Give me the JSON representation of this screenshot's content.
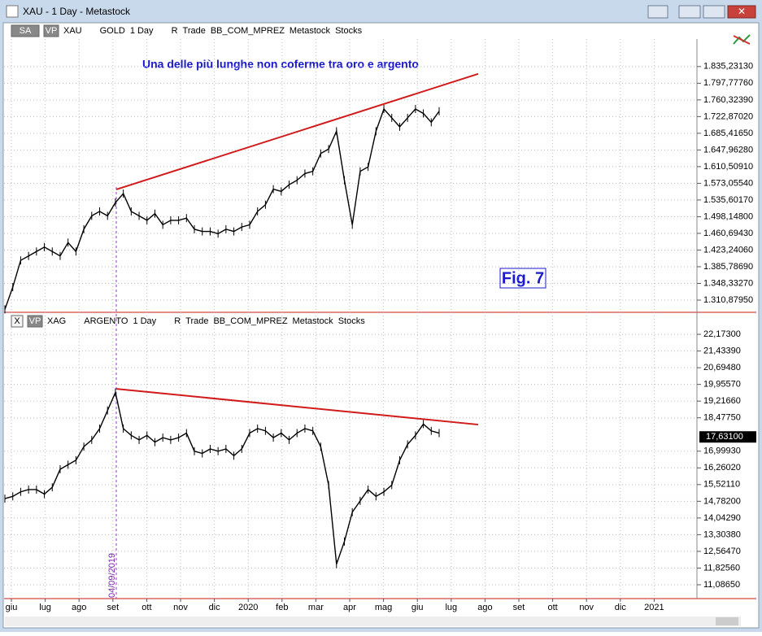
{
  "window": {
    "title": "XAU - 1 Day - Metastock"
  },
  "annotation": "Una delle più lunghe non coferme tra oro e argento",
  "figure_label": "Fig. 7",
  "marker_date": "04/09/2019",
  "x_axis": {
    "labels": [
      "giu",
      "lug",
      "ago",
      "set",
      "ott",
      "nov",
      "dic",
      "2020",
      "feb",
      "mar",
      "apr",
      "mag",
      "giu",
      "lug",
      "ago",
      "set",
      "ott",
      "nov",
      "dic",
      "2021"
    ]
  },
  "panels": [
    {
      "toolbar": {
        "style": "SA",
        "vp": "VP",
        "symbol": "XAU",
        "name": "GOLD",
        "period": "1 Day",
        "r": "R",
        "template": "Trade",
        "indicator": "BB_COM_MPREZ",
        "source": "Metastock",
        "kind": "Stocks"
      },
      "ylim": [
        1285.3,
        1897
      ],
      "yticks": [
        {
          "value": 1310.8795,
          "label": "1.310,87950"
        },
        {
          "value": 1348.3327,
          "label": "1.348,33270"
        },
        {
          "value": 1385.7869,
          "label": "1.385,78690"
        },
        {
          "value": 1423.2406,
          "label": "1.423,24060"
        },
        {
          "value": 1460.6943,
          "label": "1.460,69430"
        },
        {
          "value": 1498.148,
          "label": "1.498,14800"
        },
        {
          "value": 1535.6017,
          "label": "1.535,60170"
        },
        {
          "value": 1573.0554,
          "label": "1.573,05540"
        },
        {
          "value": 1610.5091,
          "label": "1.610,50910"
        },
        {
          "value": 1647.9628,
          "label": "1.647,96280"
        },
        {
          "value": 1685.4165,
          "label": "1.685,41650"
        },
        {
          "value": 1722.8702,
          "label": "1.722,87020"
        },
        {
          "value": 1760.3239,
          "label": "1.760,32390"
        },
        {
          "value": 1797.7776,
          "label": "1.797,77760"
        },
        {
          "value": 1835.2313,
          "label": "1.835,23130"
        }
      ],
      "closes": [
        1290,
        1340,
        1400,
        1410,
        1420,
        1430,
        1420,
        1410,
        1440,
        1420,
        1470,
        1500,
        1510,
        1500,
        1530,
        1550,
        1510,
        1500,
        1490,
        1505,
        1480,
        1490,
        1490,
        1495,
        1470,
        1465,
        1465,
        1460,
        1470,
        1465,
        1475,
        1480,
        1510,
        1525,
        1560,
        1555,
        1570,
        1580,
        1595,
        1600,
        1640,
        1650,
        1690,
        1580,
        1480,
        1600,
        1610,
        1690,
        1740,
        1720,
        1700,
        1720,
        1740,
        1730,
        1710,
        1735
      ],
      "trendline": [
        1559.3,
        1818.8
      ],
      "color": "#000000",
      "trend_color": "#d11a1a"
    },
    {
      "toolbar": {
        "style": "X",
        "vp": "VP",
        "symbol": "XAG",
        "name": "ARGENTO",
        "period": "1 Day",
        "r": "R",
        "template": "Trade",
        "indicator": "BB_COM_MPREZ",
        "source": "Metastock",
        "kind": "Stocks"
      },
      "ylim": [
        10.51,
        23.04
      ],
      "yticks": [
        {
          "value": 11.0865,
          "label": "11,08650"
        },
        {
          "value": 11.8256,
          "label": "11,82560"
        },
        {
          "value": 12.5647,
          "label": "12,56470"
        },
        {
          "value": 13.3038,
          "label": "13,30380"
        },
        {
          "value": 14.0429,
          "label": "14,04290"
        },
        {
          "value": 14.782,
          "label": "14,78200"
        },
        {
          "value": 15.5211,
          "label": "15,52110"
        },
        {
          "value": 16.2602,
          "label": "16,26020"
        },
        {
          "value": 16.9993,
          "label": "16,99930"
        },
        {
          "value": 18.4775,
          "label": "18,47750"
        },
        {
          "value": 19.2166,
          "label": "19,21660"
        },
        {
          "value": 19.9557,
          "label": "19,95570"
        },
        {
          "value": 20.6948,
          "label": "20,69480"
        },
        {
          "value": 21.4339,
          "label": "21,43390"
        },
        {
          "value": 22.173,
          "label": "22,17300"
        }
      ],
      "last_price": {
        "value": 17.631,
        "label": "17,63100"
      },
      "closes": [
        14.9,
        15.0,
        15.2,
        15.3,
        15.3,
        15.1,
        15.4,
        16.2,
        16.4,
        16.6,
        17.2,
        17.5,
        18.0,
        18.8,
        19.6,
        18.0,
        17.7,
        17.5,
        17.7,
        17.4,
        17.6,
        17.5,
        17.6,
        17.8,
        17.0,
        16.9,
        17.1,
        17.0,
        17.1,
        16.8,
        17.1,
        17.8,
        18.0,
        17.9,
        17.6,
        17.8,
        17.5,
        17.8,
        18.0,
        17.9,
        17.2,
        15.5,
        12.0,
        13.0,
        14.3,
        14.8,
        15.3,
        15.0,
        15.2,
        15.5,
        16.6,
        17.3,
        17.7,
        18.2,
        17.9,
        17.8
      ],
      "trendline": [
        19.76,
        18.177
      ],
      "color": "#000000",
      "trend_color": "#d11a1a"
    }
  ]
}
